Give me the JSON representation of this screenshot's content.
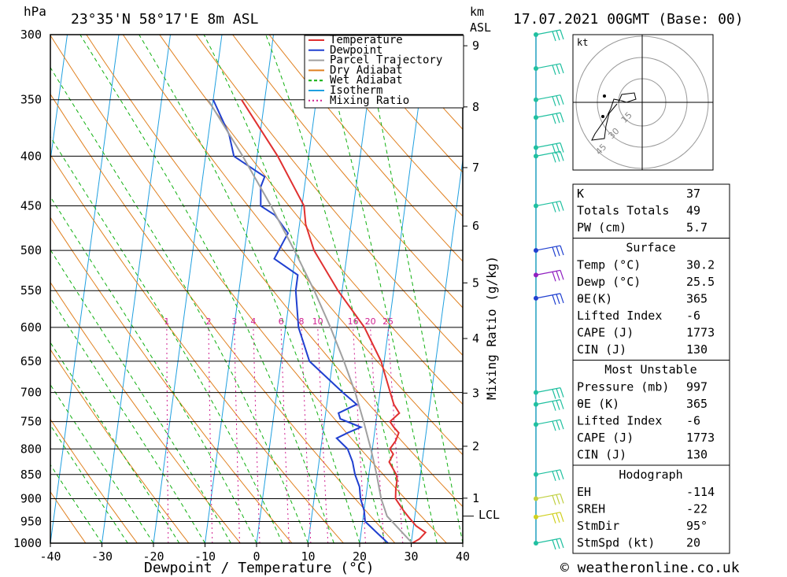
{
  "header": {
    "hpa_unit": "hPa",
    "location": "23°35'N  58°17'E  8m  ASL",
    "km_unit": "km",
    "asl_unit": "ASL",
    "datetime": "17.07.2021  00GMT  (Base: 00)"
  },
  "axes": {
    "xlabel": "Dewpoint / Temperature (°C)",
    "mixing_label": "Mixing Ratio (g/kg)",
    "lcl_label": "LCL",
    "hodo_unit": "kt",
    "footer": "© weatheronline.co.uk"
  },
  "legend": [
    {
      "name": "Temperature",
      "color": "#e03030"
    },
    {
      "name": "Dewpoint",
      "color": "#2040d0"
    },
    {
      "name": "Parcel Trajectory",
      "color": "#a0a0a0"
    },
    {
      "name": "Dry Adiabat",
      "color": "#e08020"
    },
    {
      "name": "Wet Adiabat",
      "color": "#10b010"
    },
    {
      "name": "Isotherm",
      "color": "#20a0e0"
    },
    {
      "name": "Mixing Ratio",
      "color": "#d02090"
    }
  ],
  "chart_data": {
    "type": "line",
    "title": "23°35'N 58°17'E 8m ASL",
    "xlabel": "Dewpoint / Temperature (°C)",
    "ylabel": "hPa",
    "xlim": [
      -40,
      40
    ],
    "ylim": [
      1000,
      300
    ],
    "pressure_ticks": [
      300,
      350,
      400,
      450,
      500,
      550,
      600,
      650,
      700,
      750,
      800,
      850,
      900,
      950,
      1000
    ],
    "temp_ticks": [
      -40,
      -30,
      -20,
      -10,
      0,
      10,
      20,
      30,
      40
    ],
    "km_ticks": [
      {
        "km": 1,
        "p": 899
      },
      {
        "km": 2,
        "p": 795
      },
      {
        "km": 3,
        "p": 701
      },
      {
        "km": 4,
        "p": 616
      },
      {
        "km": 5,
        "p": 540
      },
      {
        "km": 6,
        "p": 472
      },
      {
        "km": 7,
        "p": 411
      },
      {
        "km": 8,
        "p": 356
      },
      {
        "km": 9,
        "p": 308
      }
    ],
    "lcl_pressure": 938,
    "mixing_ratio_labels": [
      1,
      2,
      3,
      4,
      6,
      8,
      10,
      16,
      20,
      25
    ],
    "series": [
      {
        "name": "Temperature",
        "points": [
          [
            1000,
            30.2
          ],
          [
            990,
            31.5
          ],
          [
            975,
            32.5
          ],
          [
            960,
            30.5
          ],
          [
            940,
            28.8
          ],
          [
            925,
            27.6
          ],
          [
            900,
            25.8
          ],
          [
            880,
            25.6
          ],
          [
            860,
            25.6
          ],
          [
            850,
            25.3
          ],
          [
            825,
            23.6
          ],
          [
            810,
            24.2
          ],
          [
            800,
            23.4
          ],
          [
            785,
            24.3
          ],
          [
            770,
            24.7
          ],
          [
            760,
            23.6
          ],
          [
            750,
            22.7
          ],
          [
            735,
            24.3
          ],
          [
            720,
            23.0
          ],
          [
            700,
            22.0
          ],
          [
            650,
            19.4
          ],
          [
            600,
            15.3
          ],
          [
            550,
            9.2
          ],
          [
            500,
            3.5
          ],
          [
            470,
            1.2
          ],
          [
            450,
            0.4
          ],
          [
            400,
            -6.0
          ],
          [
            350,
            -14.5
          ]
        ]
      },
      {
        "name": "Dewpoint",
        "points": [
          [
            1000,
            25.5
          ],
          [
            975,
            23.0
          ],
          [
            950,
            20.5
          ],
          [
            925,
            20.0
          ],
          [
            900,
            19.0
          ],
          [
            875,
            18.5
          ],
          [
            850,
            17.3
          ],
          [
            825,
            16.5
          ],
          [
            800,
            15.2
          ],
          [
            790,
            14.0
          ],
          [
            780,
            12.8
          ],
          [
            770,
            14.8
          ],
          [
            760,
            17.2
          ],
          [
            745,
            13.0
          ],
          [
            735,
            12.5
          ],
          [
            720,
            15.8
          ],
          [
            700,
            12.8
          ],
          [
            650,
            5.5
          ],
          [
            600,
            2.5
          ],
          [
            550,
            1.0
          ],
          [
            530,
            1.0
          ],
          [
            510,
            -4.0
          ],
          [
            480,
            -2.0
          ],
          [
            460,
            -5.0
          ],
          [
            450,
            -8.0
          ],
          [
            430,
            -8.5
          ],
          [
            420,
            -8.0
          ],
          [
            400,
            -14.5
          ],
          [
            380,
            -16.0
          ],
          [
            350,
            -20.0
          ]
        ]
      },
      {
        "name": "Parcel Trajectory",
        "points": [
          [
            1000,
            30.2
          ],
          [
            938,
            24.6
          ],
          [
            900,
            23.0
          ],
          [
            850,
            21.5
          ],
          [
            800,
            19.7
          ],
          [
            750,
            17.6
          ],
          [
            700,
            15.2
          ],
          [
            650,
            12.2
          ],
          [
            600,
            8.7
          ],
          [
            550,
            4.6
          ],
          [
            500,
            -0.3
          ],
          [
            450,
            -6.0
          ],
          [
            400,
            -12.8
          ],
          [
            350,
            -21.0
          ]
        ]
      }
    ]
  },
  "indices_table": {
    "rows": [
      {
        "label": "K",
        "value": "37"
      },
      {
        "label": "Totals Totals",
        "value": "49"
      },
      {
        "label": "PW (cm)",
        "value": "5.7"
      }
    ]
  },
  "surface_table": {
    "title": "Surface",
    "rows": [
      {
        "label": "Temp (°C)",
        "value": "30.2"
      },
      {
        "label": "Dewp (°C)",
        "value": "25.5"
      },
      {
        "label": "θE(K)",
        "value": "365"
      },
      {
        "label": "Lifted Index",
        "value": "-6"
      },
      {
        "label": "CAPE (J)",
        "value": "1773"
      },
      {
        "label": "CIN (J)",
        "value": "130"
      }
    ]
  },
  "unstable_table": {
    "title": "Most Unstable",
    "rows": [
      {
        "label": "Pressure (mb)",
        "value": "997"
      },
      {
        "label": "θE (K)",
        "value": "365"
      },
      {
        "label": "Lifted Index",
        "value": "-6"
      },
      {
        "label": "CAPE (J)",
        "value": "1773"
      },
      {
        "label": "CIN (J)",
        "value": "130"
      }
    ]
  },
  "hodograph_table": {
    "title": "Hodograph",
    "rows": [
      {
        "label": "EH",
        "value": "-114"
      },
      {
        "label": "SREH",
        "value": "-22"
      },
      {
        "label": "StmDir",
        "value": "95°"
      },
      {
        "label": "StmSpd (kt)",
        "value": "20"
      }
    ]
  },
  "hodograph": {
    "ring_labels": [
      "15",
      "30",
      "45"
    ]
  }
}
